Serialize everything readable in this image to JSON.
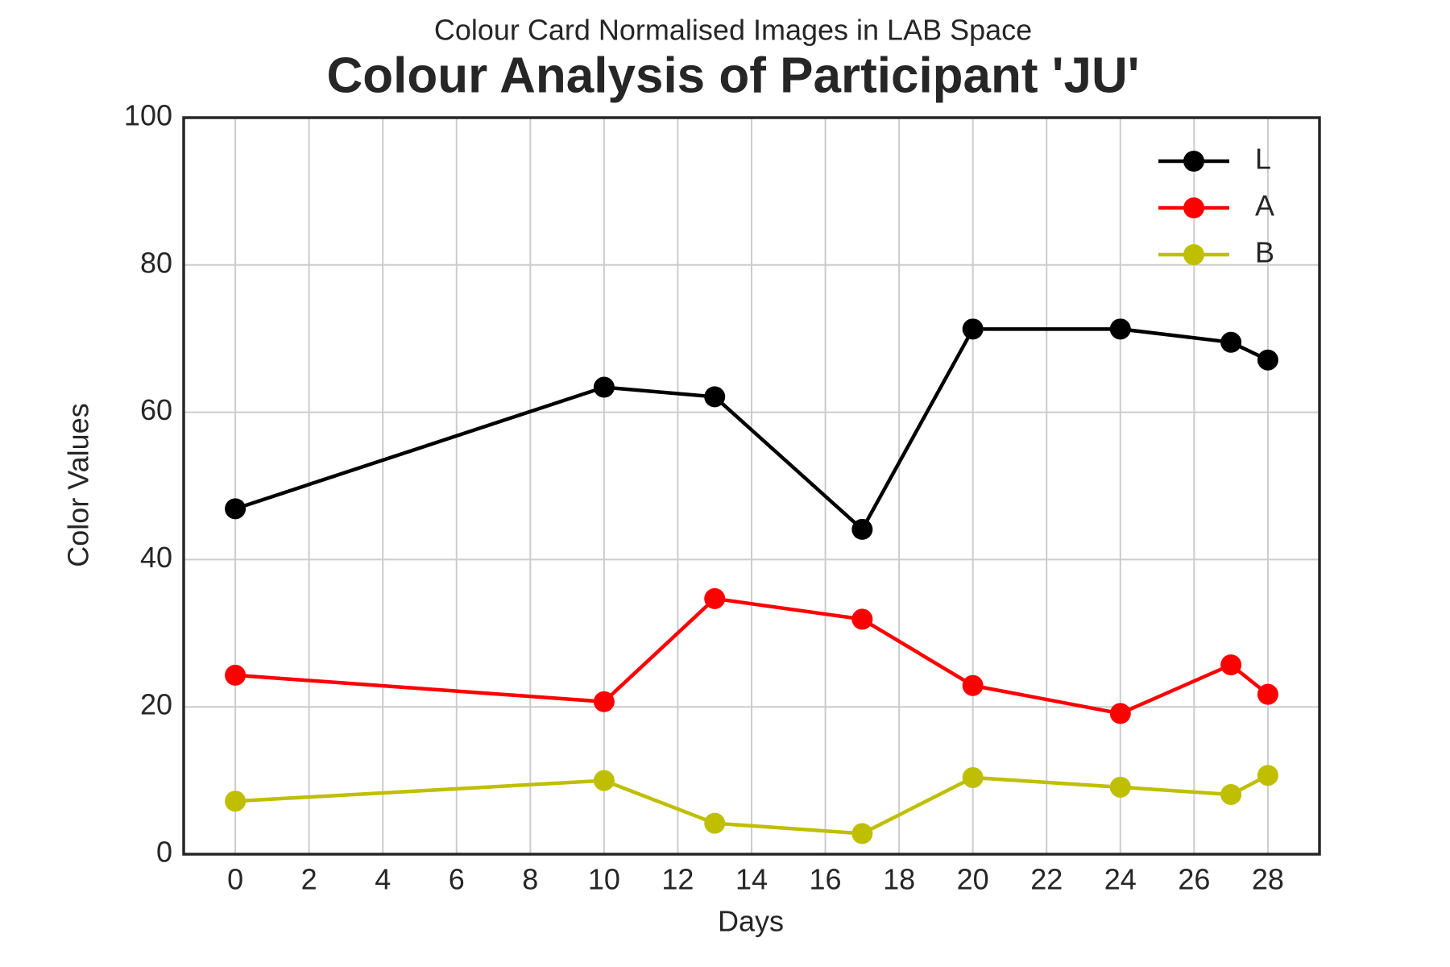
{
  "chart_data": {
    "type": "line",
    "subtitle": "Colour Card Normalised Images in LAB Space",
    "title": "Colour Analysis of Participant 'JU'",
    "x_label": "Days",
    "y_label": "Color Values",
    "x": [
      0,
      10,
      13,
      17,
      20,
      24,
      27,
      28
    ],
    "series": [
      {
        "name": "L",
        "color": "#000000",
        "values": [
          46.9,
          63.4,
          62.1,
          44.1,
          71.3,
          71.3,
          69.5,
          67.1
        ]
      },
      {
        "name": "A",
        "color": "#ff0000",
        "values": [
          24.3,
          20.7,
          34.7,
          31.9,
          22.9,
          19.1,
          25.7,
          21.7
        ]
      },
      {
        "name": "B",
        "color": "#bfbf00",
        "values": [
          7.2,
          10.0,
          4.2,
          2.8,
          10.4,
          9.1,
          8.1,
          10.7
        ]
      }
    ],
    "xlim": [
      -1.4,
      29.4
    ],
    "xticks": [
      0,
      2,
      4,
      6,
      8,
      10,
      12,
      14,
      16,
      18,
      20,
      22,
      24,
      26,
      28
    ],
    "ylim": [
      0,
      100
    ],
    "yticks": [
      0,
      20,
      40,
      60,
      80,
      100
    ],
    "grid": true,
    "legend": "upper right"
  }
}
